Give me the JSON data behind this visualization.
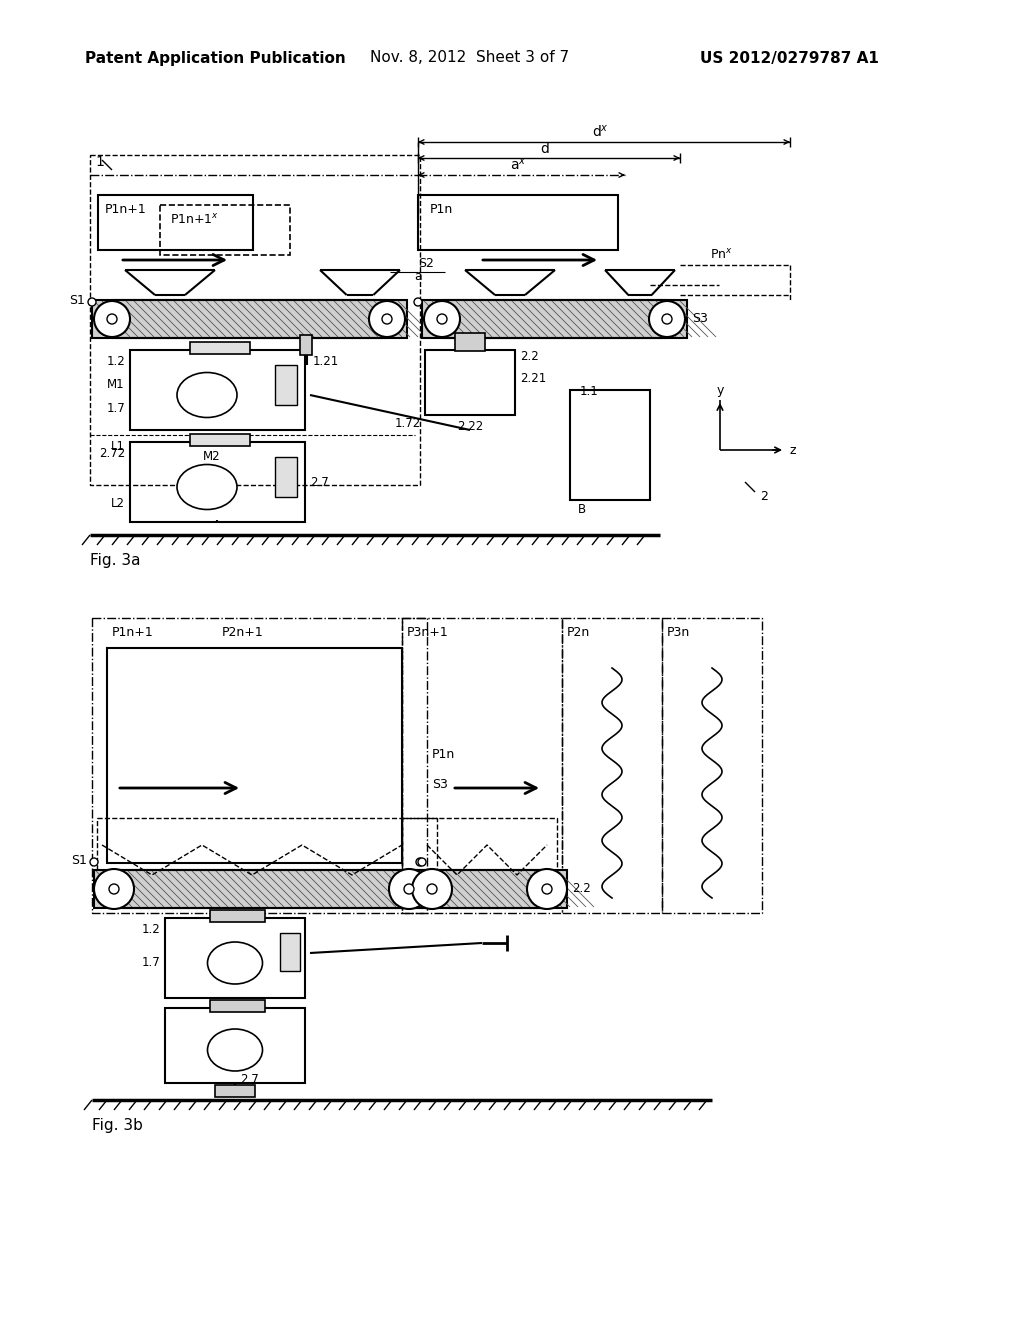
{
  "title_left": "Patent Application Publication",
  "title_mid": "Nov. 8, 2012  Sheet 3 of 7",
  "title_right": "US 2012/0279787 A1",
  "fig3a_label": "Fig. 3a",
  "fig3b_label": "Fig. 3b",
  "bg_color": "#ffffff"
}
